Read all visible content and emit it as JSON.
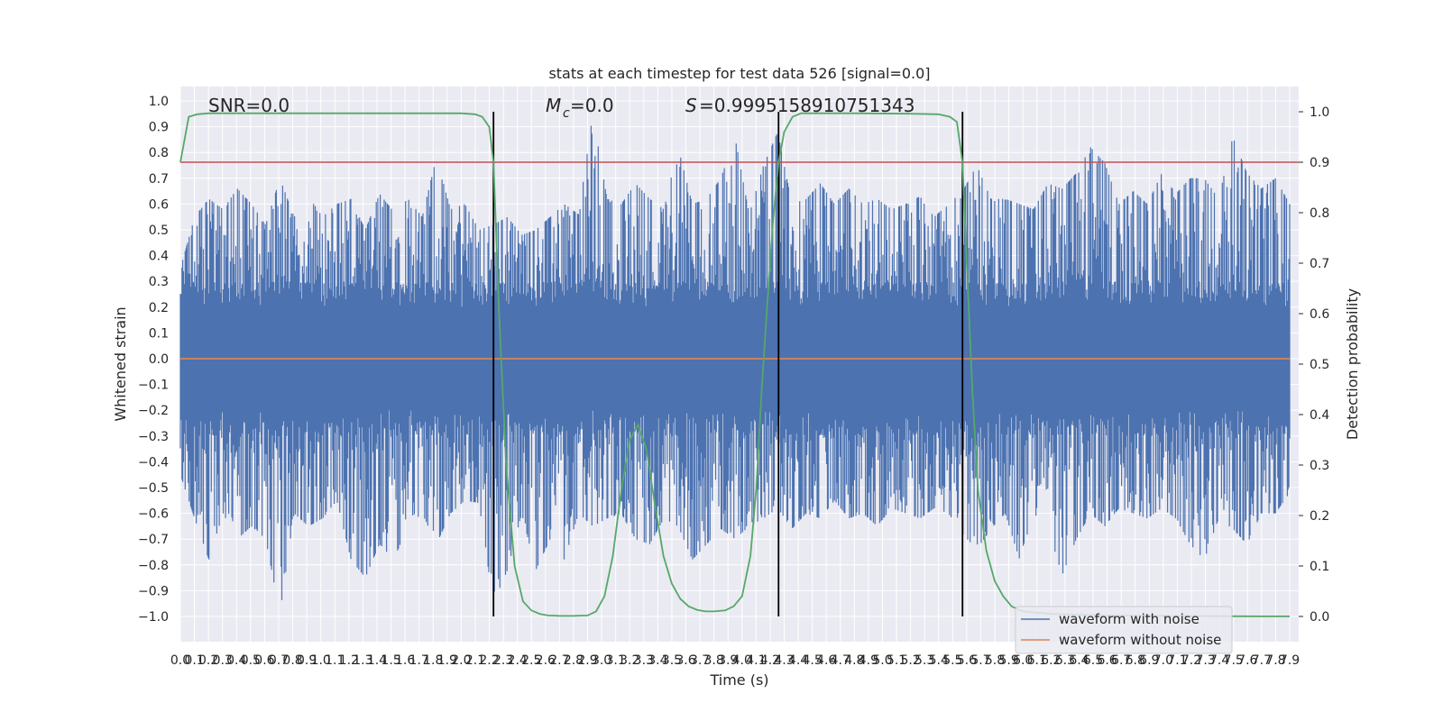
{
  "chart_data": {
    "type": "line",
    "title": "stats at each timestep for test data 526 [signal=0.0]",
    "xlabel": "Time (s)",
    "ylabel_left": "Whitened strain",
    "ylabel_right": "Detection probability",
    "xlim": [
      0.0,
      7.9
    ],
    "ylim_left": [
      -1.0,
      1.0
    ],
    "ylim_right": [
      0.0,
      1.0
    ],
    "grid": true,
    "legend_position": "lower-right",
    "x_tick_labels": [
      "0.0",
      "0.1",
      "0.2",
      "0.3",
      "0.4",
      "0.5",
      "0.6",
      "0.7",
      "0.8",
      "0.9",
      "1.0",
      "1.1",
      "1.2",
      "1.3",
      "1.4",
      "1.5",
      "1.6",
      "1.7",
      "1.8",
      "1.9",
      "2.0",
      "2.1",
      "2.2",
      "2.3",
      "2.4",
      "2.5",
      "2.6",
      "2.7",
      "2.8",
      "2.9",
      "3.0",
      "3.1",
      "3.2",
      "3.3",
      "3.4",
      "3.5",
      "3.6",
      "3.7",
      "3.8",
      "3.9",
      "4.0",
      "4.1",
      "4.2",
      "4.3",
      "4.4",
      "4.5",
      "4.6",
      "4.7",
      "4.8",
      "4.9",
      "5.0",
      "5.1",
      "5.2",
      "5.3",
      "5.4",
      "5.5",
      "5.6",
      "5.7",
      "5.8",
      "5.9",
      "6.0",
      "6.1",
      "6.2",
      "6.3",
      "6.4",
      "6.5",
      "6.6",
      "6.7",
      "6.8",
      "6.9",
      "7.0",
      "7.1",
      "7.2",
      "7.3",
      "7.4",
      "7.5",
      "7.6",
      "7.7",
      "7.8",
      "7.9"
    ],
    "y_left_tick_labels": [
      "1.0",
      "0.9",
      "0.8",
      "0.7",
      "0.6",
      "0.5",
      "0.4",
      "0.3",
      "0.2",
      "0.1",
      "0.0",
      "-0.1",
      "-0.2",
      "-0.3",
      "-0.4",
      "-0.5",
      "-0.6",
      "-0.7",
      "-0.8",
      "-0.9",
      "-1.0"
    ],
    "y_right_tick_labels": [
      "1.0",
      "0.9",
      "0.8",
      "0.7",
      "0.6",
      "0.5",
      "0.4",
      "0.3",
      "0.2",
      "0.1",
      "0.0"
    ],
    "annotations": {
      "snr": "SNR=0.0",
      "mc": "=0.0",
      "s": "=0.9995158910751343"
    },
    "threshold": 0.9,
    "threshold_color": "#c44e52",
    "vertical_lines_x": [
      2.23,
      4.26,
      5.57
    ],
    "series": [
      {
        "name": "waveform with noise",
        "color": "#4c72b0",
        "style": "dense noise trace",
        "envelope_upper": [
          0.35,
          0.55,
          0.62,
          0.58,
          0.66,
          0.6,
          0.52,
          0.7,
          0.55,
          0.63,
          0.55,
          0.6,
          0.62,
          0.5,
          0.64,
          0.57,
          0.62,
          0.55,
          0.78,
          0.58,
          0.6,
          0.5,
          0.52,
          0.55,
          0.48,
          0.5,
          0.55,
          0.6,
          0.56,
          0.95,
          0.62,
          0.6,
          0.68,
          0.62,
          0.58,
          0.82,
          0.6,
          0.62,
          0.7,
          0.86,
          0.56,
          0.75,
          0.88,
          0.6,
          0.62,
          0.68,
          0.6,
          0.66,
          0.6,
          0.62,
          0.58,
          0.6,
          0.63,
          0.55,
          0.6,
          0.65,
          0.75,
          0.62,
          0.62,
          0.6,
          0.58,
          0.68,
          0.66,
          0.72,
          0.82,
          0.76,
          0.6,
          0.65,
          0.6,
          0.72,
          0.64,
          0.7,
          0.7,
          0.62,
          0.86,
          0.72,
          0.66,
          0.7,
          0.6
        ],
        "envelope_lower": [
          -0.45,
          -0.62,
          -0.78,
          -0.6,
          -0.7,
          -0.65,
          -0.7,
          -0.99,
          -0.6,
          -0.65,
          -0.62,
          -0.55,
          -0.78,
          -0.85,
          -0.72,
          -0.78,
          -0.65,
          -0.6,
          -0.72,
          -0.6,
          -0.55,
          -0.56,
          -0.95,
          -0.82,
          -0.6,
          -0.82,
          -0.7,
          -0.78,
          -0.6,
          -0.65,
          -0.62,
          -0.6,
          -0.7,
          -0.72,
          -0.62,
          -0.65,
          -0.78,
          -0.72,
          -0.66,
          -0.7,
          -0.65,
          -0.62,
          -0.58,
          -0.66,
          -0.6,
          -0.62,
          -0.55,
          -0.62,
          -0.6,
          -0.65,
          -0.58,
          -0.6,
          -0.62,
          -0.58,
          -0.6,
          -0.68,
          -0.74,
          -0.66,
          -0.6,
          -0.78,
          -0.6,
          -0.66,
          -0.84,
          -0.7,
          -0.6,
          -0.65,
          -0.58,
          -0.6,
          -0.62,
          -0.58,
          -0.62,
          -0.72,
          -0.78,
          -0.62,
          -0.66,
          -0.72,
          -0.6,
          -0.6,
          -0.52
        ]
      },
      {
        "name": "waveform without noise",
        "color": "#dd8452",
        "y_constant": 0.0
      },
      {
        "name": "",
        "color": "#55a868",
        "axis": "right",
        "x": [
          0.0,
          0.06,
          0.12,
          0.2,
          0.4,
          0.8,
          1.2,
          1.6,
          2.0,
          2.1,
          2.15,
          2.2,
          2.23,
          2.27,
          2.32,
          2.38,
          2.44,
          2.5,
          2.56,
          2.62,
          2.7,
          2.8,
          2.9,
          2.96,
          3.02,
          3.08,
          3.14,
          3.2,
          3.26,
          3.32,
          3.38,
          3.44,
          3.5,
          3.56,
          3.62,
          3.68,
          3.74,
          3.8,
          3.88,
          3.94,
          4.0,
          4.06,
          4.1,
          4.14,
          4.18,
          4.22,
          4.26,
          4.3,
          4.36,
          4.42,
          4.5,
          4.6,
          4.8,
          5.2,
          5.4,
          5.48,
          5.53,
          5.57,
          5.6,
          5.64,
          5.68,
          5.74,
          5.8,
          5.86,
          5.92,
          6.0,
          6.2,
          6.6,
          7.0,
          7.4,
          7.8,
          7.9
        ],
        "y": [
          0.9,
          0.99,
          0.995,
          0.997,
          0.997,
          0.997,
          0.997,
          0.997,
          0.997,
          0.995,
          0.99,
          0.97,
          0.9,
          0.6,
          0.3,
          0.1,
          0.03,
          0.012,
          0.005,
          0.002,
          0.001,
          0.001,
          0.002,
          0.01,
          0.04,
          0.12,
          0.25,
          0.35,
          0.38,
          0.33,
          0.22,
          0.12,
          0.065,
          0.035,
          0.02,
          0.013,
          0.01,
          0.01,
          0.012,
          0.02,
          0.04,
          0.12,
          0.25,
          0.45,
          0.62,
          0.78,
          0.9,
          0.96,
          0.99,
          0.997,
          0.997,
          0.997,
          0.997,
          0.996,
          0.995,
          0.99,
          0.98,
          0.9,
          0.7,
          0.45,
          0.25,
          0.13,
          0.07,
          0.04,
          0.02,
          0.01,
          0.005,
          0.002,
          0.001,
          0.0005,
          0.0002,
          0.0002
        ]
      }
    ]
  }
}
